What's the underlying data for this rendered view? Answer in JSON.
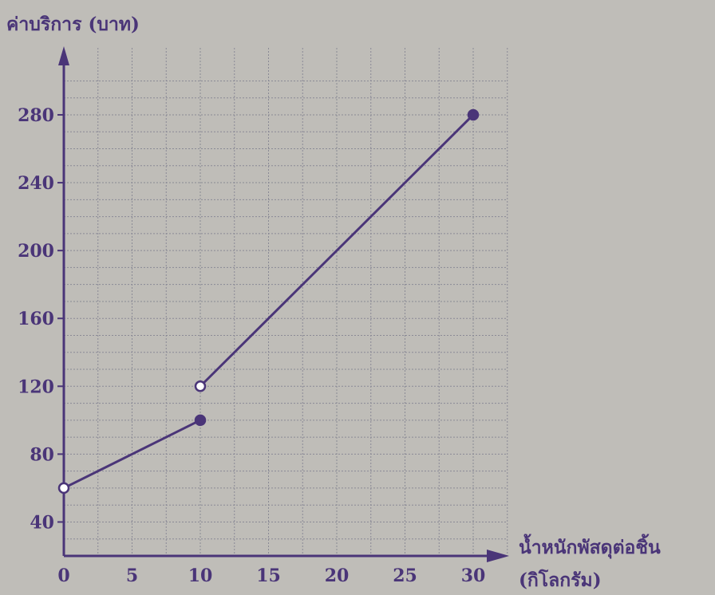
{
  "chart_data": {
    "type": "line",
    "ylabel": "ค่าบริการ (บาท)",
    "xlabel_line1": "น้ำหนักพัสดุต่อชิ้น",
    "xlabel_line2": "(กิโลกรัม)",
    "x_ticks": [
      0,
      5,
      10,
      15,
      20,
      25,
      30
    ],
    "y_ticks": [
      40,
      80,
      120,
      160,
      200,
      240,
      280
    ],
    "xlim": [
      0,
      30
    ],
    "ylim": [
      20,
      280
    ],
    "grid": true,
    "segments": [
      {
        "points": [
          [
            0,
            60
          ],
          [
            10,
            100
          ]
        ],
        "endpoints": [
          "open",
          "closed"
        ]
      },
      {
        "points": [
          [
            10,
            120
          ],
          [
            30,
            280
          ]
        ],
        "endpoints": [
          "open",
          "closed"
        ]
      }
    ],
    "colors": {
      "line": "#4a3578",
      "grid": "#8a8a95",
      "background": "#bfbdb8"
    }
  }
}
